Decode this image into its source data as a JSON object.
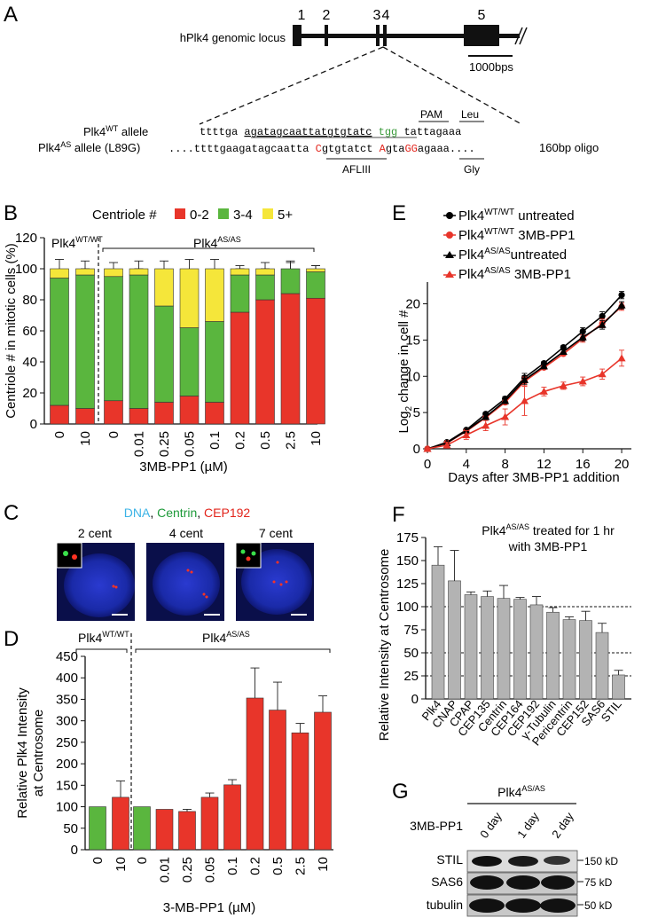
{
  "panel_letters": [
    "A",
    "B",
    "C",
    "D",
    "E",
    "F",
    "G"
  ],
  "panel_a": {
    "locus_label": "hPlk4 genomic locus",
    "exon_labels": [
      "1",
      "2",
      "3",
      "4",
      "5"
    ],
    "scale_label": "1000bps",
    "pam_label": "PAM",
    "leu_label": "Leu",
    "wt_allele_label": "Plk4",
    "wt_allele_sup": "WT",
    "wt_allele_suffix": " allele",
    "as_allele_label": "Plk4",
    "as_allele_sup": "AS",
    "as_allele_suffix": " allele (L89G)",
    "wt_seq_a": "ttttga ",
    "wt_seq_b": "agatagcaattatgtgtatc",
    "wt_seq_c": " tgg",
    "wt_seq_d": " tattagaaa",
    "as_seq_1": "....ttttgaagatagcaatta ",
    "as_seq_2": "C",
    "as_seq_3": "gtgtatct ",
    "as_seq_4": "A",
    "as_seq_5": "gta",
    "as_seq_6": "GG",
    "as_seq_7": "agaaa....",
    "oligo_label": "160bp oligo",
    "aflIII_label": "AFLIII",
    "gly_label": "Gly"
  },
  "chart_data": [
    {
      "panel": "B",
      "type": "bar",
      "stacked": true,
      "title": "Centriole #",
      "ylabel": "Centriole # in mitotic cells (%)",
      "xlabel": "3MB-PP1 (µM)",
      "ylim": [
        0,
        120
      ],
      "yticks": [
        0,
        20,
        40,
        60,
        80,
        100,
        120
      ],
      "group_labels": [
        "Plk4WT/WT",
        "Plk4AS/AS"
      ],
      "categories": [
        "0",
        "10",
        "0",
        "0.01",
        "0.25",
        "0.05",
        "0.1",
        "0.2",
        "0.5",
        "2.5",
        "10"
      ],
      "series": [
        {
          "name": "0-2",
          "color": "#e8352a",
          "values": [
            12,
            10,
            15,
            10,
            14,
            18,
            14,
            72,
            80,
            84,
            81
          ]
        },
        {
          "name": "3-4",
          "color": "#5ab63e",
          "values": [
            82,
            86,
            80,
            86,
            62,
            44,
            52,
            24,
            16,
            16,
            17
          ]
        },
        {
          "name": "5+",
          "color": "#f5e63a",
          "values": [
            6,
            4,
            5,
            4,
            24,
            38,
            34,
            4,
            4,
            0,
            2
          ]
        }
      ],
      "error_bars_top": [
        6,
        5,
        4,
        5,
        5,
        6,
        6,
        2,
        4,
        5,
        2
      ]
    },
    {
      "panel": "D",
      "type": "bar",
      "ylabel": "Relative Plk4 Intensity at Centrosome",
      "xlabel": "3-MB-PP1 (µM)",
      "ylim": [
        0,
        450
      ],
      "yticks": [
        0,
        50,
        100,
        150,
        200,
        250,
        300,
        350,
        400,
        450
      ],
      "group_labels": [
        "Plk4WT/WT",
        "Plk4AS/AS"
      ],
      "categories": [
        "0",
        "10",
        "0",
        "0.01",
        "0.25",
        "0.05",
        "0.1",
        "0.2",
        "0.5",
        "2.5",
        "10"
      ],
      "values": [
        100,
        122,
        100,
        94,
        89,
        122,
        151,
        353,
        325,
        272,
        320
      ],
      "errors": [
        0,
        38,
        0,
        0,
        5,
        10,
        12,
        70,
        65,
        22,
        38
      ],
      "colors": [
        "#5ab63e",
        "#e8352a",
        "#5ab63e",
        "#e8352a",
        "#e8352a",
        "#e8352a",
        "#e8352a",
        "#e8352a",
        "#e8352a",
        "#e8352a",
        "#e8352a"
      ]
    },
    {
      "panel": "E",
      "type": "line",
      "ylabel": "Log2 change in cell #",
      "xlabel": "Days after 3MB-PP1 addition",
      "xlim": [
        0,
        21
      ],
      "ylim": [
        0,
        23
      ],
      "xticks": [
        0,
        4,
        8,
        12,
        16,
        20
      ],
      "yticks": [
        0,
        5,
        10,
        15,
        20
      ],
      "x": [
        0,
        2,
        4,
        6,
        8,
        10,
        12,
        14,
        16,
        18,
        20
      ],
      "series": [
        {
          "name": "Plk4WT/WT untreated",
          "color": "#000000",
          "marker": "circle",
          "values": [
            0,
            0.9,
            2.6,
            4.8,
            6.9,
            9.8,
            11.8,
            14.0,
            16.2,
            18.3,
            21.2
          ]
        },
        {
          "name": "Plk4WT/WT 3MB-PP1",
          "color": "#e8352a",
          "marker": "circle",
          "values": [
            0,
            0.8,
            2.4,
            4.3,
            6.4,
            9.3,
            11.2,
            13.1,
            15.2,
            17.3,
            19.6
          ]
        },
        {
          "name": "Plk4AS/AS untreated",
          "color": "#000000",
          "marker": "triangle",
          "values": [
            0,
            0.8,
            2.5,
            4.4,
            6.6,
            9.5,
            11.4,
            13.4,
            15.4,
            17.1,
            19.8
          ]
        },
        {
          "name": "Plk4AS/AS 3MB-PP1",
          "color": "#e8352a",
          "marker": "triangle",
          "values": [
            0,
            0.5,
            1.9,
            3.2,
            4.4,
            6.6,
            7.9,
            8.7,
            9.3,
            10.3,
            12.5
          ]
        }
      ]
    },
    {
      "panel": "F",
      "type": "bar",
      "title": "Plk4AS/AS treated for 1 hr with 3MB-PP1",
      "ylabel": "Relative Intensity at Centrosome",
      "ylim": [
        0,
        175
      ],
      "yticks": [
        0,
        25,
        50,
        75,
        100,
        125,
        150,
        175
      ],
      "reference_lines": [
        25,
        50,
        100
      ],
      "categories": [
        "Plk4",
        "CNAP",
        "CPAP",
        "CEP135",
        "Centrin",
        "CEP164",
        "CEP192",
        "γ-Tubulin",
        "Pericentrin",
        "CEP152",
        "SAS6",
        "STIL"
      ],
      "values": [
        145,
        128,
        113,
        111,
        109,
        108,
        102,
        94,
        86,
        85,
        72,
        26
      ],
      "errors": [
        20,
        33,
        3,
        6,
        14,
        2,
        9,
        5,
        3,
        10,
        10,
        5
      ],
      "color": "#b3b3b3"
    }
  ],
  "panel_b": {
    "legend_title": "Centriole #",
    "legend_items": [
      "0-2",
      "3-4",
      "5+"
    ],
    "group_wt": "Plk4",
    "group_wt_sup": "WT/WT",
    "group_as": "Plk4",
    "group_as_sup": "AS/AS"
  },
  "panel_c": {
    "legend_dna": "DNA",
    "legend_sep1": ", ",
    "legend_centrin": "Centrin",
    "legend_sep2": ", ",
    "legend_cep192": "CEP192",
    "image_labels": [
      "2 cent",
      "4 cent",
      "7 cent"
    ]
  },
  "panel_d": {
    "group_wt": "Plk4",
    "group_wt_sup": "WT/WT",
    "group_as": "Plk4",
    "group_as_sup": "AS/AS"
  },
  "panel_e": {
    "legend": [
      {
        "base": "Plk4",
        "sup": "WT/WT",
        "suffix": " untreated"
      },
      {
        "base": "Plk4",
        "sup": "WT/WT",
        "suffix": " 3MB-PP1"
      },
      {
        "base": "Plk4",
        "sup": "AS/AS",
        "suffix": "untreated"
      },
      {
        "base": "Plk4",
        "sup": "AS/AS",
        "suffix": " 3MB-PP1"
      }
    ],
    "ylabel_base": "Log",
    "ylabel_sub": "2",
    "ylabel_rest": " change in cell #"
  },
  "panel_f": {
    "title_l1_base": "Plk4",
    "title_l1_sup": "AS/AS",
    "title_l1_rest": " treated for 1 hr",
    "title_l2": "with 3MB-PP1"
  },
  "panel_g": {
    "genotype_base": "Plk4",
    "genotype_sup": "AS/AS",
    "treatment_label": "3MB-PP1",
    "lanes": [
      "0 day",
      "1 day",
      "2 day"
    ],
    "blots": [
      {
        "name": "STIL",
        "marker": "150 kD"
      },
      {
        "name": "SAS6",
        "marker": "75 kD"
      },
      {
        "name": "tubulin",
        "marker": "50 kD"
      }
    ]
  },
  "colors": {
    "red": "#e8352a",
    "green": "#5ab63e",
    "yellow": "#f5e63a",
    "gray": "#b3b3b3",
    "dna_blue": "#3bb3e6",
    "centrin_green": "#1e9a3a",
    "cep192_red": "#e2231a",
    "pam_green": "#3a9a3a",
    "mut_red": "#e2231a"
  }
}
